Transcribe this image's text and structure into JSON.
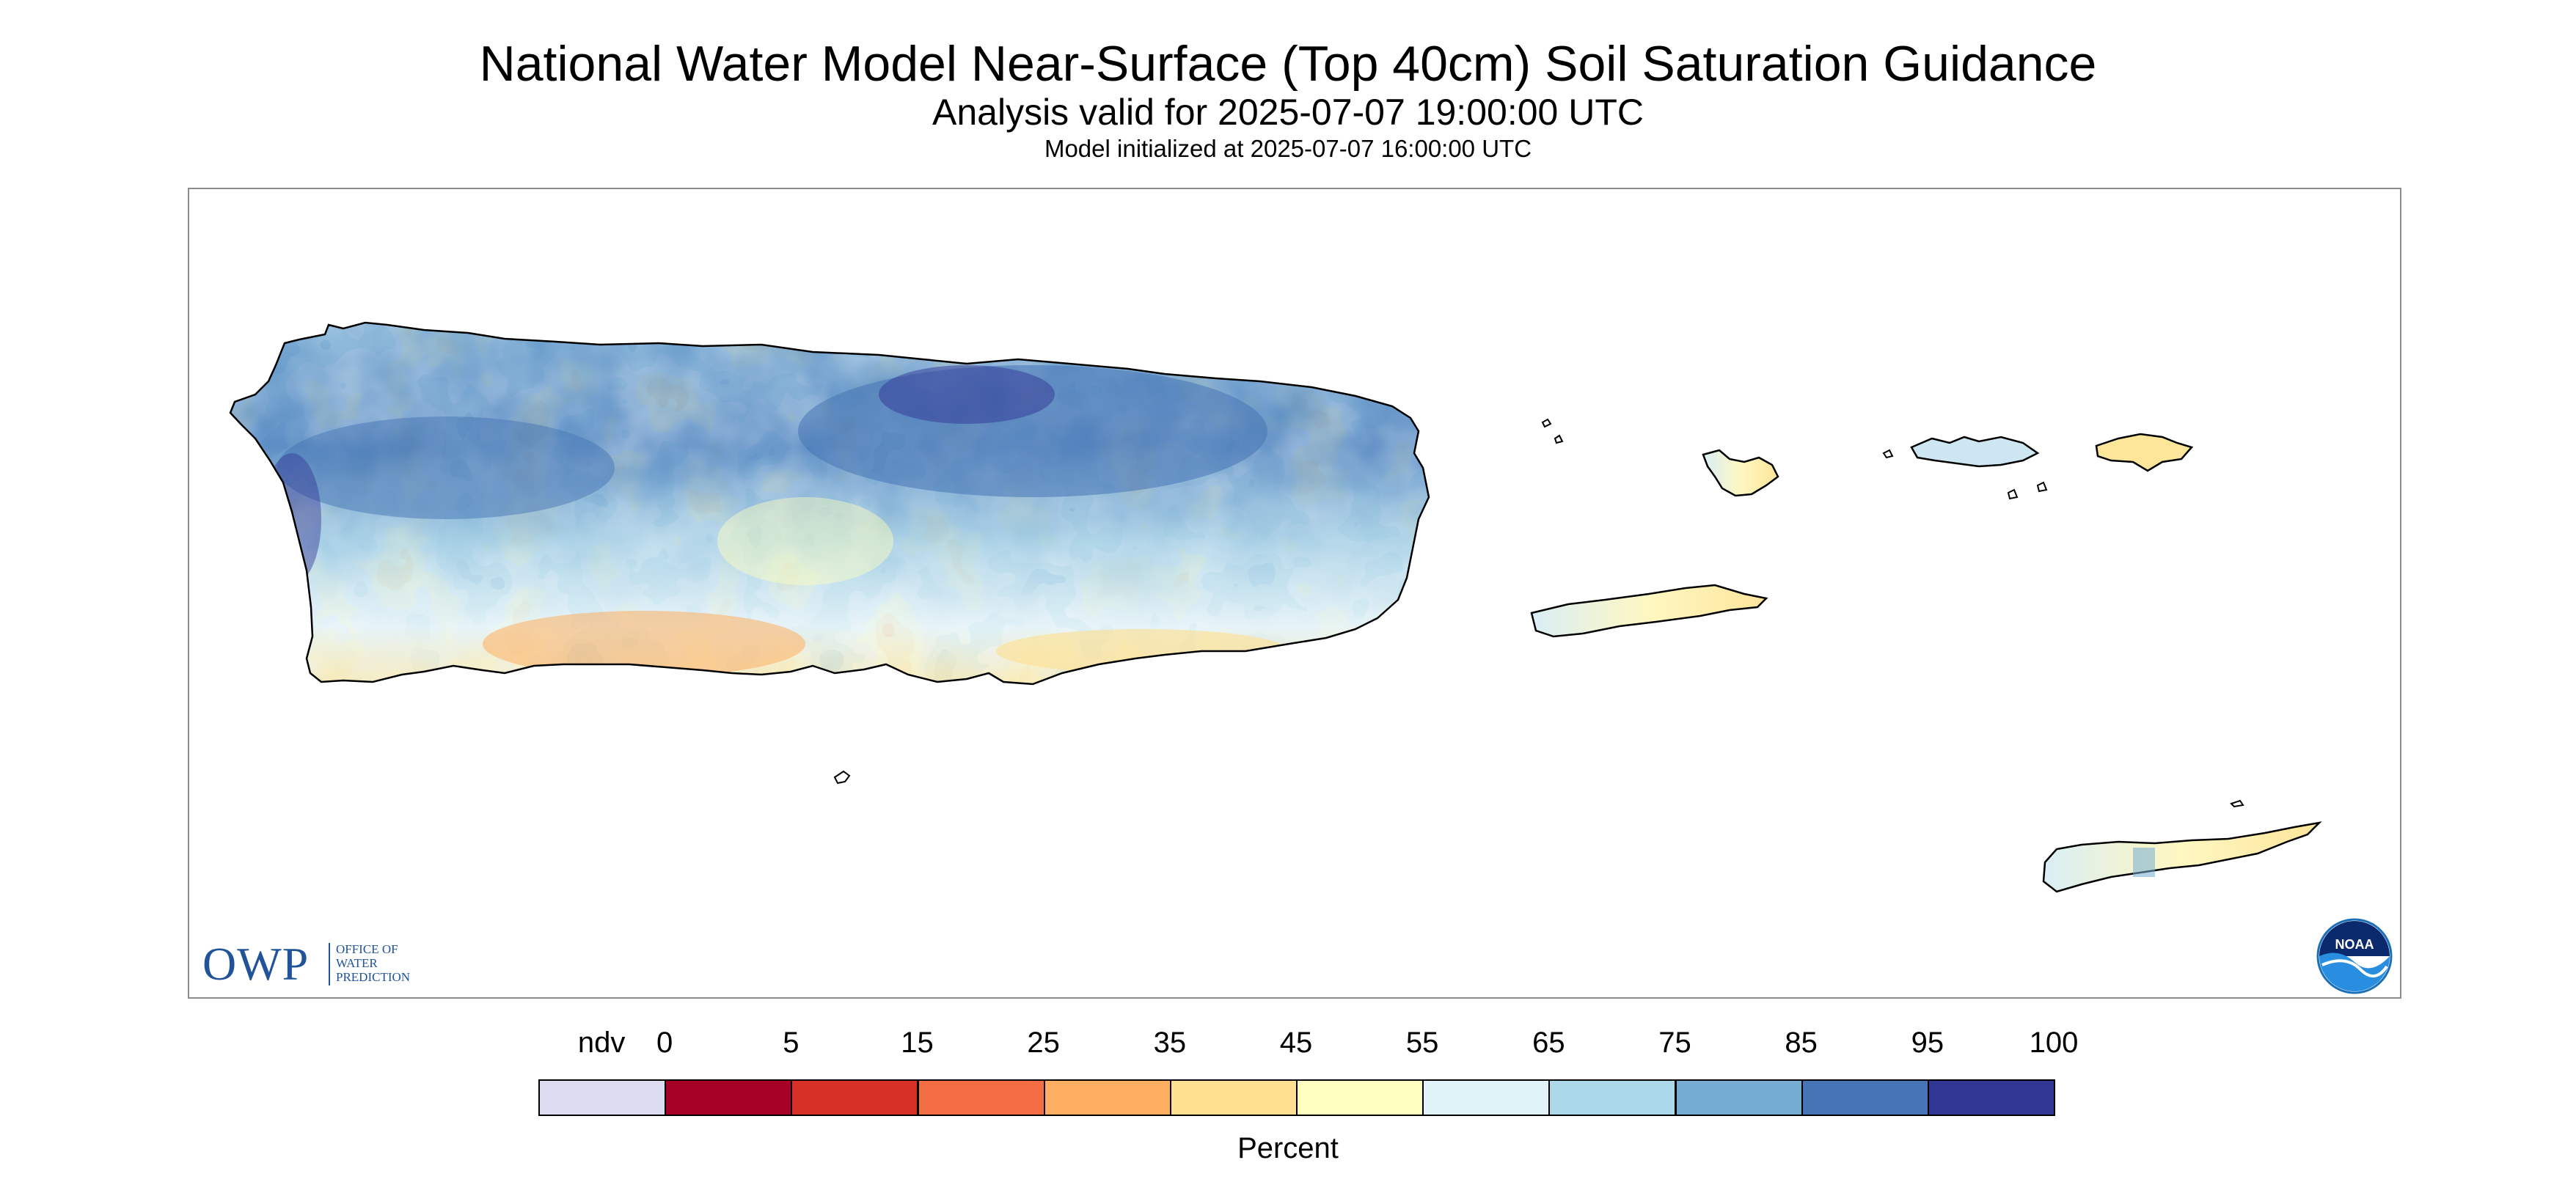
{
  "title": "National Water Model Near-Surface (Top 40cm) Soil Saturation Guidance",
  "subtitle": "Analysis valid for 2025-07-07 19:00:00 UTC",
  "init_line": "Model initialized at 2025-07-07 16:00:00 UTC",
  "logos": {
    "owp": {
      "text": "OWP",
      "lines": [
        "OFFICE OF",
        "WATER",
        "PREDICTION"
      ],
      "color": "#20539a"
    },
    "noaa": {
      "text": "NOAA",
      "color": "#1a6fb8"
    }
  },
  "map": {
    "regions": [
      "Puerto Rico",
      "Vieques",
      "Culebra",
      "St. Thomas",
      "St. John",
      "St. Croix"
    ],
    "coastline_color": "#000000",
    "dominant_colors": {
      "puerto_rico_north": "#4575b4",
      "puerto_rico_south": "#fee090",
      "islands_east": "#ffffbf"
    }
  },
  "colorbar": {
    "label": "Percent",
    "tick_labels": [
      "ndv",
      "0",
      "5",
      "15",
      "25",
      "35",
      "45",
      "55",
      "65",
      "75",
      "85",
      "95",
      "100"
    ],
    "bins": [
      {
        "range": "ndv",
        "color": "#dcdcf0"
      },
      {
        "range": "0-5",
        "color": "#a50026"
      },
      {
        "range": "5-15",
        "color": "#d73027"
      },
      {
        "range": "15-25",
        "color": "#f46d43"
      },
      {
        "range": "25-35",
        "color": "#fdae61"
      },
      {
        "range": "35-45",
        "color": "#fee090"
      },
      {
        "range": "45-55",
        "color": "#ffffbf"
      },
      {
        "range": "55-65",
        "color": "#e0f3f8"
      },
      {
        "range": "65-75",
        "color": "#abd9e9"
      },
      {
        "range": "75-85",
        "color": "#74add1"
      },
      {
        "range": "85-95",
        "color": "#4575b4"
      },
      {
        "range": "95-100",
        "color": "#313695"
      }
    ]
  }
}
